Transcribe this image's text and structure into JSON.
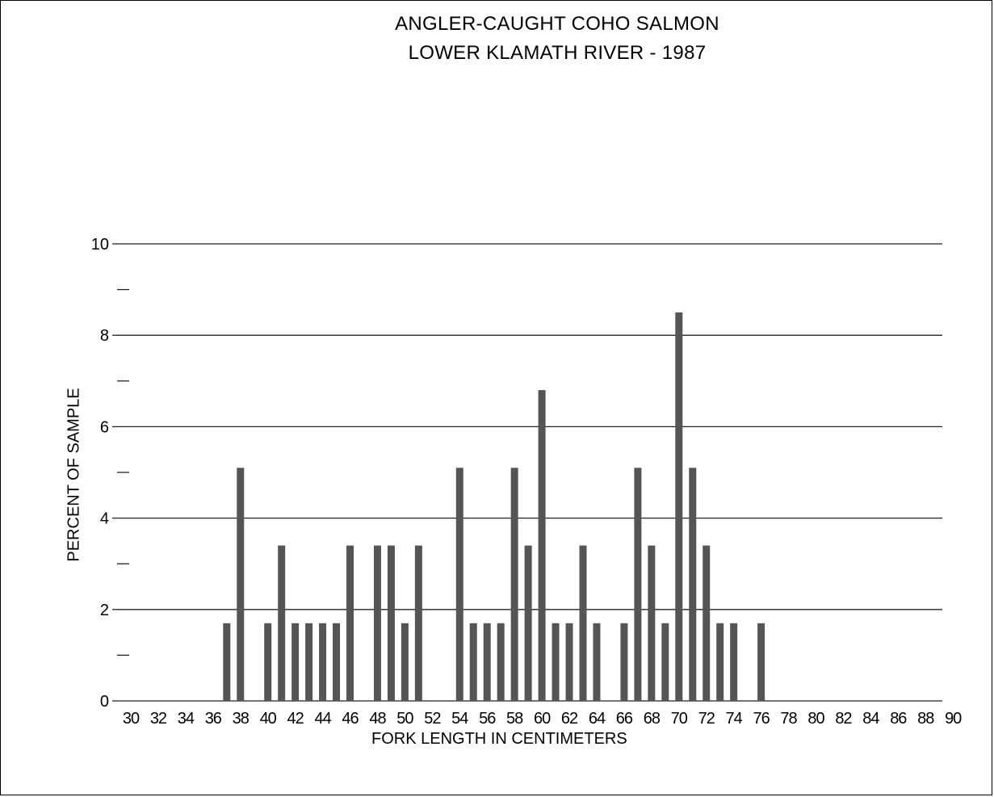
{
  "chart_data": {
    "type": "bar",
    "title": "ANGLER-CAUGHT COHO SALMON",
    "subtitle": "LOWER KLAMATH RIVER  -  1987",
    "xlabel": "FORK LENGTH IN CENTIMETERS",
    "ylabel": "PERCENT OF SAMPLE",
    "ylim": [
      0,
      10
    ],
    "yticks": [
      "0",
      "2",
      "4",
      "6",
      "8",
      "10"
    ],
    "grid": true,
    "x_tick_labels": [
      "30",
      "32",
      "34",
      "36",
      "38",
      "40",
      "42",
      "44",
      "46",
      "48",
      "50",
      "52",
      "54",
      "56",
      "58",
      "60",
      "62",
      "64",
      "66",
      "68",
      "70",
      "72",
      "74",
      "76",
      "78",
      "80",
      "82",
      "84",
      "86",
      "88",
      "90"
    ],
    "bars": [
      {
        "x": 37,
        "value": 1.7
      },
      {
        "x": 38,
        "value": 5.1
      },
      {
        "x": 40,
        "value": 1.7
      },
      {
        "x": 41,
        "value": 3.4
      },
      {
        "x": 42,
        "value": 1.7
      },
      {
        "x": 43,
        "value": 1.7
      },
      {
        "x": 44,
        "value": 1.7
      },
      {
        "x": 45,
        "value": 1.7
      },
      {
        "x": 46,
        "value": 3.4
      },
      {
        "x": 48,
        "value": 3.4
      },
      {
        "x": 49,
        "value": 3.4
      },
      {
        "x": 50,
        "value": 1.7
      },
      {
        "x": 51,
        "value": 3.4
      },
      {
        "x": 54,
        "value": 5.1
      },
      {
        "x": 55,
        "value": 1.7
      },
      {
        "x": 56,
        "value": 1.7
      },
      {
        "x": 57,
        "value": 1.7
      },
      {
        "x": 58,
        "value": 5.1
      },
      {
        "x": 59,
        "value": 3.4
      },
      {
        "x": 60,
        "value": 6.8
      },
      {
        "x": 61,
        "value": 1.7
      },
      {
        "x": 62,
        "value": 1.7
      },
      {
        "x": 63,
        "value": 3.4
      },
      {
        "x": 64,
        "value": 1.7
      },
      {
        "x": 66,
        "value": 1.7
      },
      {
        "x": 67,
        "value": 5.1
      },
      {
        "x": 68,
        "value": 3.4
      },
      {
        "x": 69,
        "value": 1.7
      },
      {
        "x": 70,
        "value": 8.5
      },
      {
        "x": 71,
        "value": 5.1
      },
      {
        "x": 72,
        "value": 3.4
      },
      {
        "x": 73,
        "value": 1.7
      },
      {
        "x": 74,
        "value": 1.7
      },
      {
        "x": 76,
        "value": 1.7
      }
    ],
    "bar_color": "#555555"
  }
}
